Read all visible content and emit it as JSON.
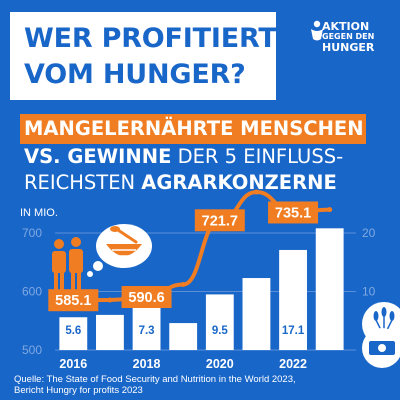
{
  "title": {
    "line1": "WER PROFITIERT",
    "line2": "VOM HUNGER?"
  },
  "logo": {
    "line1": "AKTION",
    "line2": "GEGEN DEN",
    "line3": "HUNGER"
  },
  "subtitle": {
    "line1": "MANGELERNÄHRTE MENSCHEN",
    "line2_bold": "VS. GEWINNE",
    "line2_rest": " DER 5 EINFLUSS-",
    "line3_rest": "REICHSTEN ",
    "line3_bold": "AGRARKONZERNE"
  },
  "unit_label": "IN MIO.",
  "colors": {
    "background": "#1966c9",
    "accent": "#f07d22",
    "bar": "#ffffff",
    "text": "#ffffff"
  },
  "icons": [
    "people-icon",
    "empty-bowl-icon",
    "wheat-icon",
    "money-icon",
    "logo-emblem-icon"
  ],
  "chart_data": {
    "type": "bar+line",
    "x": [
      2016,
      2017,
      2018,
      2019,
      2020,
      2021,
      2022,
      2023
    ],
    "x_tick_labels": [
      "2016",
      "2018",
      "2020",
      "2022"
    ],
    "series": [
      {
        "axis": "left",
        "type": "line",
        "values": [
          585.1,
          585.5,
          590.6,
          612,
          721.7,
          770,
          735.1,
          740
        ],
        "labels": [
          {
            "index": 0,
            "text": "585.1"
          },
          {
            "index": 2,
            "text": "590.6"
          },
          {
            "index": 4,
            "text": "721.7"
          },
          {
            "index": 6,
            "text": "735.1"
          }
        ]
      },
      {
        "axis": "right",
        "type": "bar",
        "values": [
          5.6,
          6.0,
          7.3,
          4.6,
          9.5,
          12.3,
          17.1,
          20.8
        ],
        "labels": [
          {
            "index": 0,
            "text": "5.6"
          },
          {
            "index": 2,
            "text": "7.3"
          },
          {
            "index": 4,
            "text": "9.5"
          },
          {
            "index": 6,
            "text": "17.1"
          }
        ]
      }
    ],
    "y_left": {
      "range": [
        500,
        700
      ],
      "ticks": [
        "500",
        "600",
        "700"
      ]
    },
    "y_right": {
      "range": [
        0,
        20
      ],
      "ticks": [
        "0",
        "10",
        "20"
      ]
    },
    "grid": true
  },
  "source": {
    "line1": "Quelle: The State of Food Security and Nutrition in the World 2023,",
    "line2": "Bericht Hungry for profits 2023"
  }
}
